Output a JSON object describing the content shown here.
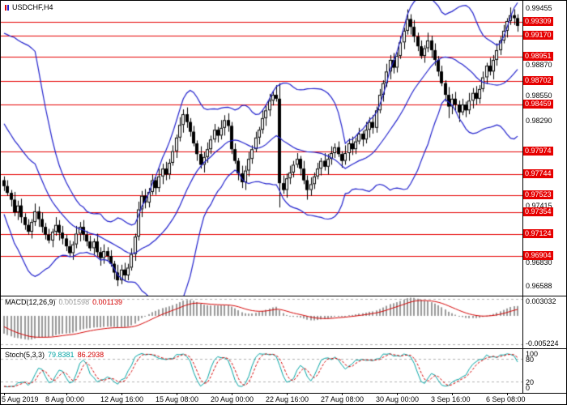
{
  "colors": {
    "level": "#e60000",
    "band": "#2020cc",
    "bull": "#ffffff",
    "bear": "#000000",
    "wick": "#000000",
    "hist": "#9a9a9a",
    "signal": "#d40000",
    "stoch_main": "#00a3a3",
    "stoch_signal": "#d40000",
    "grid": "#b0b0b0",
    "price_box_text": "#ffffff"
  },
  "chart_data": [
    {
      "type": "candlestick",
      "title": "USDCHF,H4",
      "symbol": "USDCHF",
      "timeframe": "H4",
      "ylim": [
        0.965,
        0.9952
      ],
      "bollinger": {
        "period": 20,
        "deviation": 2
      },
      "y_axis_plain_labels": [
        {
          "value": 0.99455,
          "label": "0.99455"
        },
        {
          "value": 0.9887,
          "label": "0.98870"
        },
        {
          "value": 0.9855,
          "label": "0.98550"
        },
        {
          "value": 0.9829,
          "label": "0.98290"
        },
        {
          "value": 0.97415,
          "label": "0.97415"
        },
        {
          "value": 0.9683,
          "label": "0.96830"
        },
        {
          "value": 0.96588,
          "label": "0.96588"
        }
      ],
      "levels": [
        {
          "value": 0.99309,
          "label": "0.99309"
        },
        {
          "value": 0.9917,
          "label": "0.99170"
        },
        {
          "value": 0.98951,
          "label": "0.98951"
        },
        {
          "value": 0.98702,
          "label": "0.98702"
        },
        {
          "value": 0.98459,
          "label": "0.98459"
        },
        {
          "value": 0.97974,
          "label": "0.97974"
        },
        {
          "value": 0.97744,
          "label": "0.97744"
        },
        {
          "value": 0.97523,
          "label": "0.97523"
        },
        {
          "value": 0.97354,
          "label": "0.97354"
        },
        {
          "value": 0.97124,
          "label": "0.97124"
        },
        {
          "value": 0.96904,
          "label": "0.96904"
        }
      ],
      "x_axis_labels": [
        {
          "bar": 0,
          "label": "5 Aug 2019"
        },
        {
          "bar": 18,
          "label": "8 Aug 00:00"
        },
        {
          "bar": 34,
          "label": "12 Aug 16:00"
        },
        {
          "bar": 50,
          "label": "15 Aug 08:00"
        },
        {
          "bar": 66,
          "label": "20 Aug 00:00"
        },
        {
          "bar": 82,
          "label": "22 Aug 16:00"
        },
        {
          "bar": 98,
          "label": "27 Aug 08:00"
        },
        {
          "bar": 114,
          "label": "30 Aug 00:00"
        },
        {
          "bar": 130,
          "label": "3 Sep 16:00"
        },
        {
          "bar": 146,
          "label": "6 Sep 08:00"
        }
      ],
      "pre_candles": [
        [
          0.991,
          0.9918,
          0.9895,
          0.99
        ],
        [
          0.99,
          0.9906,
          0.9882,
          0.989
        ],
        [
          0.989,
          0.9895,
          0.9868,
          0.9875
        ],
        [
          0.9875,
          0.988,
          0.9848,
          0.9855
        ],
        [
          0.9855,
          0.9862,
          0.9832,
          0.984
        ],
        [
          0.984,
          0.9845,
          0.9812,
          0.982
        ],
        [
          0.982,
          0.9826,
          0.9798,
          0.9805
        ],
        [
          0.9805,
          0.981,
          0.9783,
          0.979
        ],
        [
          0.979,
          0.9796,
          0.9772,
          0.978
        ],
        [
          0.978,
          0.9786,
          0.9765,
          0.9772
        ]
      ],
      "candles": [
        [
          0.9768,
          0.9772,
          0.9757,
          0.9762
        ],
        [
          0.9762,
          0.9768,
          0.9752,
          0.9755
        ],
        [
          0.9755,
          0.9758,
          0.9741,
          0.9748
        ],
        [
          0.9748,
          0.9756,
          0.9731,
          0.9735
        ],
        [
          0.9735,
          0.9747,
          0.9727,
          0.9742
        ],
        [
          0.9742,
          0.9749,
          0.9724,
          0.973
        ],
        [
          0.973,
          0.9734,
          0.9717,
          0.9722
        ],
        [
          0.9722,
          0.9728,
          0.9712,
          0.9715
        ],
        [
          0.9715,
          0.9728,
          0.9708,
          0.9725
        ],
        [
          0.9725,
          0.9744,
          0.9721,
          0.9736
        ],
        [
          0.9736,
          0.9741,
          0.972,
          0.9728
        ],
        [
          0.9728,
          0.9735,
          0.9714,
          0.972
        ],
        [
          0.972,
          0.9724,
          0.9707,
          0.9712
        ],
        [
          0.9712,
          0.9718,
          0.9703,
          0.9706
        ],
        [
          0.9706,
          0.9718,
          0.9699,
          0.9715
        ],
        [
          0.9715,
          0.973,
          0.9711,
          0.9722
        ],
        [
          0.9722,
          0.9727,
          0.9706,
          0.9714
        ],
        [
          0.9714,
          0.9721,
          0.9702,
          0.9708
        ],
        [
          0.9708,
          0.9712,
          0.9695,
          0.97
        ],
        [
          0.97,
          0.9706,
          0.969,
          0.9693
        ],
        [
          0.9693,
          0.9705,
          0.9686,
          0.9702
        ],
        [
          0.9702,
          0.9721,
          0.9698,
          0.9713
        ],
        [
          0.9713,
          0.9725,
          0.9705,
          0.972
        ],
        [
          0.972,
          0.9727,
          0.9706,
          0.9712
        ],
        [
          0.9712,
          0.9716,
          0.97,
          0.9705
        ],
        [
          0.9705,
          0.9711,
          0.9695,
          0.9698
        ],
        [
          0.9698,
          0.9708,
          0.9691,
          0.9705
        ],
        [
          0.9705,
          0.9713,
          0.969,
          0.9694
        ],
        [
          0.9694,
          0.9699,
          0.968,
          0.9688
        ],
        [
          0.9688,
          0.9702,
          0.9682,
          0.9695
        ],
        [
          0.9695,
          0.9699,
          0.9685,
          0.969
        ],
        [
          0.969,
          0.9696,
          0.9679,
          0.9682
        ],
        [
          0.9682,
          0.9685,
          0.9666,
          0.9673
        ],
        [
          0.9673,
          0.9681,
          0.9659,
          0.9665
        ],
        [
          0.9665,
          0.9681,
          0.9661,
          0.9676
        ],
        [
          0.9676,
          0.9683,
          0.9664,
          0.967
        ],
        [
          0.967,
          0.9682,
          0.9665,
          0.9678
        ],
        [
          0.9678,
          0.9698,
          0.9675,
          0.9692
        ],
        [
          0.9692,
          0.9713,
          0.9685,
          0.971
        ],
        [
          0.971,
          0.9746,
          0.9706,
          0.9738
        ],
        [
          0.9738,
          0.9757,
          0.973,
          0.9752
        ],
        [
          0.9752,
          0.9759,
          0.9739,
          0.9745
        ],
        [
          0.9745,
          0.976,
          0.974,
          0.9756
        ],
        [
          0.9756,
          0.9774,
          0.9753,
          0.9768
        ],
        [
          0.9768,
          0.9771,
          0.9753,
          0.976
        ],
        [
          0.976,
          0.978,
          0.9756,
          0.9772
        ],
        [
          0.9772,
          0.9785,
          0.9764,
          0.978
        ],
        [
          0.978,
          0.9787,
          0.9768,
          0.9774
        ],
        [
          0.9774,
          0.979,
          0.9769,
          0.9786
        ],
        [
          0.9786,
          0.9804,
          0.9783,
          0.9798
        ],
        [
          0.9798,
          0.9815,
          0.9791,
          0.9812
        ],
        [
          0.9812,
          0.9833,
          0.9808,
          0.9825
        ],
        [
          0.9825,
          0.9841,
          0.9817,
          0.9836
        ],
        [
          0.9836,
          0.9843,
          0.9822,
          0.9828
        ],
        [
          0.9828,
          0.9832,
          0.9813,
          0.9818
        ],
        [
          0.9818,
          0.9824,
          0.9803,
          0.9806
        ],
        [
          0.9806,
          0.9809,
          0.9788,
          0.9795
        ],
        [
          0.9795,
          0.9803,
          0.978,
          0.9784
        ],
        [
          0.9784,
          0.9797,
          0.9776,
          0.9792
        ],
        [
          0.9792,
          0.9807,
          0.9786,
          0.98
        ],
        [
          0.98,
          0.9814,
          0.9795,
          0.981
        ],
        [
          0.981,
          0.9826,
          0.9807,
          0.982
        ],
        [
          0.982,
          0.9823,
          0.9807,
          0.9814
        ],
        [
          0.9814,
          0.983,
          0.981,
          0.9822
        ],
        [
          0.9822,
          0.9835,
          0.9814,
          0.983
        ],
        [
          0.983,
          0.9837,
          0.9818,
          0.9824
        ],
        [
          0.9824,
          0.9828,
          0.9795,
          0.98
        ],
        [
          0.98,
          0.9806,
          0.9785,
          0.9788
        ],
        [
          0.9788,
          0.9791,
          0.9768,
          0.9775
        ],
        [
          0.9775,
          0.9783,
          0.976,
          0.9766
        ],
        [
          0.9766,
          0.9783,
          0.9758,
          0.9778
        ],
        [
          0.9778,
          0.9797,
          0.9772,
          0.979
        ],
        [
          0.979,
          0.9804,
          0.9785,
          0.98
        ],
        [
          0.98,
          0.9818,
          0.9797,
          0.9812
        ],
        [
          0.9812,
          0.9823,
          0.9805,
          0.982
        ],
        [
          0.982,
          0.984,
          0.9816,
          0.9832
        ],
        [
          0.9832,
          0.9845,
          0.9824,
          0.984
        ],
        [
          0.984,
          0.9857,
          0.9834,
          0.985
        ],
        [
          0.985,
          0.986,
          0.9845,
          0.9856
        ],
        [
          0.9856,
          0.9866,
          0.9849,
          0.9852
        ],
        [
          0.9852,
          0.9868,
          0.974,
          0.9765
        ],
        [
          0.9765,
          0.9773,
          0.9754,
          0.9758
        ],
        [
          0.9758,
          0.9775,
          0.975,
          0.977
        ],
        [
          0.977,
          0.9783,
          0.9764,
          0.9776
        ],
        [
          0.9776,
          0.9788,
          0.9771,
          0.9784
        ],
        [
          0.9784,
          0.9796,
          0.9781,
          0.979
        ],
        [
          0.979,
          0.9793,
          0.9773,
          0.978
        ],
        [
          0.978,
          0.9788,
          0.9764,
          0.9768
        ],
        [
          0.9768,
          0.9773,
          0.9748,
          0.9758
        ],
        [
          0.9758,
          0.9771,
          0.9752,
          0.9764
        ],
        [
          0.9764,
          0.9776,
          0.9759,
          0.9772
        ],
        [
          0.9772,
          0.9786,
          0.9769,
          0.978
        ],
        [
          0.978,
          0.9791,
          0.9773,
          0.9788
        ],
        [
          0.9788,
          0.9796,
          0.9778,
          0.9782
        ],
        [
          0.9782,
          0.9795,
          0.9774,
          0.979
        ],
        [
          0.979,
          0.9803,
          0.9784,
          0.9796
        ],
        [
          0.9796,
          0.9806,
          0.9791,
          0.9802
        ],
        [
          0.9802,
          0.9808,
          0.9792,
          0.9795
        ],
        [
          0.9795,
          0.9798,
          0.9781,
          0.9788
        ],
        [
          0.9788,
          0.9804,
          0.9784,
          0.9796
        ],
        [
          0.9796,
          0.9811,
          0.9788,
          0.9806
        ],
        [
          0.9806,
          0.9813,
          0.9794,
          0.98
        ],
        [
          0.98,
          0.9812,
          0.9795,
          0.9808
        ],
        [
          0.9808,
          0.9822,
          0.9805,
          0.9816
        ],
        [
          0.9816,
          0.9819,
          0.9803,
          0.981
        ],
        [
          0.981,
          0.9828,
          0.9806,
          0.982
        ],
        [
          0.982,
          0.9833,
          0.9812,
          0.9828
        ],
        [
          0.9828,
          0.9835,
          0.9816,
          0.9822
        ],
        [
          0.9822,
          0.9844,
          0.9817,
          0.984
        ],
        [
          0.984,
          0.9862,
          0.9837,
          0.9856
        ],
        [
          0.9856,
          0.9871,
          0.9849,
          0.9868
        ],
        [
          0.9868,
          0.9888,
          0.9864,
          0.988
        ],
        [
          0.988,
          0.9897,
          0.9872,
          0.9892
        ],
        [
          0.9892,
          0.9899,
          0.9878,
          0.9884
        ],
        [
          0.9884,
          0.99,
          0.9879,
          0.9896
        ],
        [
          0.9896,
          0.9916,
          0.9893,
          0.991
        ],
        [
          0.991,
          0.9925,
          0.9903,
          0.9922
        ],
        [
          0.9922,
          0.9944,
          0.9918,
          0.9934
        ],
        [
          0.9934,
          0.9939,
          0.9918,
          0.9926
        ],
        [
          0.9926,
          0.9933,
          0.991,
          0.9916
        ],
        [
          0.9916,
          0.992,
          0.9901,
          0.9906
        ],
        [
          0.9906,
          0.9912,
          0.9893,
          0.9896
        ],
        [
          0.9896,
          0.9907,
          0.9889,
          0.9904
        ],
        [
          0.9904,
          0.992,
          0.99,
          0.9912
        ],
        [
          0.9912,
          0.9917,
          0.9894,
          0.9902
        ],
        [
          0.9902,
          0.9909,
          0.9886,
          0.9892
        ],
        [
          0.9892,
          0.9896,
          0.9875,
          0.988
        ],
        [
          0.988,
          0.9886,
          0.9865,
          0.9868
        ],
        [
          0.9868,
          0.9871,
          0.9849,
          0.9856
        ],
        [
          0.9856,
          0.9864,
          0.9832,
          0.9844
        ],
        [
          0.9844,
          0.9857,
          0.9836,
          0.9852
        ],
        [
          0.9852,
          0.9859,
          0.984,
          0.9846
        ],
        [
          0.9846,
          0.985,
          0.9828,
          0.9838
        ],
        [
          0.9838,
          0.9852,
          0.9835,
          0.9846
        ],
        [
          0.9846,
          0.9849,
          0.9833,
          0.984
        ],
        [
          0.984,
          0.9858,
          0.9836,
          0.985
        ],
        [
          0.985,
          0.9863,
          0.9842,
          0.9858
        ],
        [
          0.9858,
          0.9865,
          0.9846,
          0.9852
        ],
        [
          0.9852,
          0.9866,
          0.9847,
          0.9862
        ],
        [
          0.9862,
          0.988,
          0.9859,
          0.9874
        ],
        [
          0.9874,
          0.9889,
          0.9867,
          0.9886
        ],
        [
          0.9886,
          0.9894,
          0.9876,
          0.988
        ],
        [
          0.988,
          0.9897,
          0.9872,
          0.9892
        ],
        [
          0.9892,
          0.9909,
          0.9886,
          0.9902
        ],
        [
          0.9902,
          0.9916,
          0.9897,
          0.9912
        ],
        [
          0.9912,
          0.9928,
          0.9909,
          0.9922
        ],
        [
          0.9922,
          0.9935,
          0.9915,
          0.9932
        ],
        [
          0.9932,
          0.9946,
          0.9928,
          0.9938
        ],
        [
          0.9938,
          0.9944,
          0.9928,
          0.9935
        ],
        [
          0.9935,
          0.9939,
          0.9921,
          0.9927
        ]
      ]
    },
    {
      "type": "macd",
      "label": "MACD(12,26,9)",
      "fast": 12,
      "slow": 26,
      "signal_period": 9,
      "value_main": "0.001598",
      "value_signal": "0.001139",
      "ylim": [
        -0.0058,
        0.0034
      ],
      "axis_labels": [
        {
          "value": 0.003032,
          "label": "0.003032"
        },
        {
          "value": -0.005224,
          "label": "-0.005224"
        }
      ]
    },
    {
      "type": "stochastic",
      "label": "Stoch(5,3,3)",
      "k_period": 5,
      "slowing": 3,
      "d_period": 3,
      "value_main": "79.8381",
      "value_signal": "86.2938",
      "ylim": [
        0,
        100
      ],
      "level_lines": [
        80,
        20
      ],
      "axis_labels": [
        {
          "value": 100,
          "label": "100"
        },
        {
          "value": 80,
          "label": "80"
        },
        {
          "value": 20,
          "label": "20"
        },
        {
          "value": 0,
          "label": "0"
        }
      ]
    }
  ]
}
